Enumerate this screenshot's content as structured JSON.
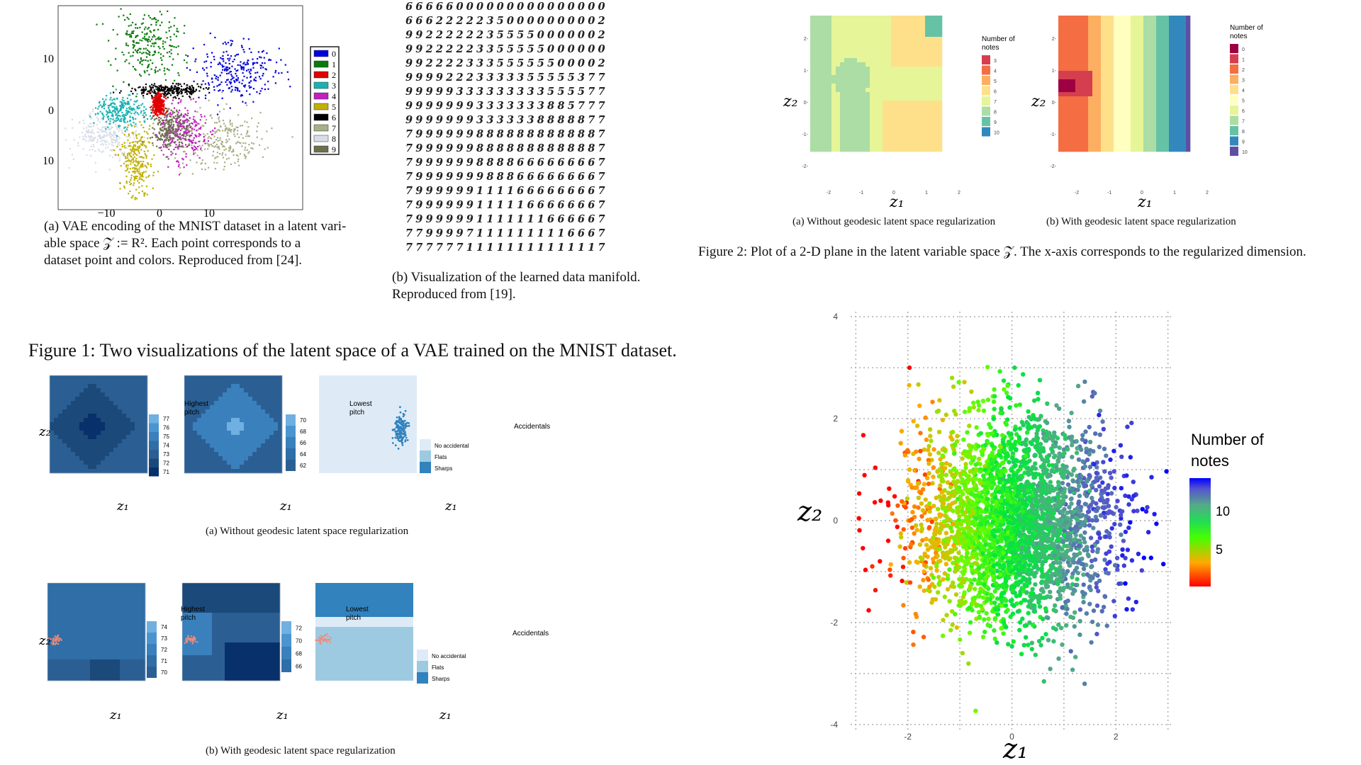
{
  "fig1": {
    "a": {
      "yticks": [
        "10",
        "0",
        "−10"
      ],
      "xticks": [
        "−10",
        "0",
        "10"
      ],
      "legend": [
        "0",
        "1",
        "2",
        "3",
        "4",
        "5",
        "6",
        "7",
        "8",
        "9"
      ],
      "legend_colors": [
        "#0000dd",
        "#0a7a0a",
        "#e00000",
        "#19b2b2",
        "#c020c0",
        "#c0b000",
        "#000000",
        "#a8b088",
        "#d8dde8",
        "#6e6e50"
      ],
      "caption_l1": "(a) VAE encoding of the MNIST dataset in a latent vari-",
      "caption_l2": "able space 𝒵 := R². Each point corresponds to a",
      "caption_l3": "dataset point and colors. Reproduced from [24]."
    },
    "b": {
      "rows": [
        "66666000000000000000",
        "66622222350000000002",
        "99222222355550000002",
        "99222223355555000000",
        "99222233355555500002",
        "99992223333355555377",
        "99999333333333555577",
        "99999993333333885777",
        "99999993333338888877",
        "79999998888888888887",
        "79999998888888888887",
        "79999998888666666667",
        "79999999888666666667",
        "79999991111666666667",
        "79999991111166666667",
        "79999991111111666667",
        "77999971111111116667",
        "77777711111111111117"
      ],
      "caption_l1": "(b) Visualization of the learned data manifold.",
      "caption_l2": "Reproduced from [19]."
    },
    "title": "Figure 1: Two visualizations of the latent space of a VAE trained on the MNIST dataset."
  },
  "fig2": {
    "a_caption": "(a) Without geodesic latent space regularization",
    "b_caption": "(b) With geodesic latent space regularization",
    "title": "Figure 2: Plot of a 2-D plane in the latent variable space 𝒵. The x-axis corresponds to the regularized dimension.",
    "a_legend_title": [
      "Number of",
      "notes"
    ],
    "a_legend": [
      "3",
      "4",
      "5",
      "6",
      "7",
      "8",
      "9",
      "10"
    ],
    "a_colors": [
      "#d53e4f",
      "#f46d43",
      "#fdae61",
      "#fee08b",
      "#e6f598",
      "#abdda4",
      "#66c2a5",
      "#3288bd"
    ],
    "b_legend_title": [
      "Number of",
      "notes"
    ],
    "b_legend": [
      "0",
      "1",
      "2",
      "3",
      "4",
      "5",
      "6",
      "7",
      "8",
      "9",
      "10"
    ],
    "b_colors": [
      "#9e0142",
      "#d53e4f",
      "#f46d43",
      "#fdae61",
      "#fee08b",
      "#ffffbf",
      "#e6f598",
      "#abdda4",
      "#66c2a5",
      "#3288bd",
      "#5e4fa2"
    ],
    "ticks_y": [
      "2-",
      "1-",
      "0-",
      "-1-",
      "-2-"
    ],
    "ticks_x": [
      "-2",
      "-1",
      "0",
      "1",
      "2"
    ]
  },
  "fig3": {
    "a_caption": "(a) Without geodesic latent space regularization",
    "b_caption": "(b) With geodesic latent space regularization",
    "a_high_title": [
      "Highest",
      "pitch"
    ],
    "a_high": [
      "77",
      "76",
      "75",
      "74",
      "73",
      "72",
      "71"
    ],
    "a_low_title": [
      "Lowest",
      "pitch"
    ],
    "a_low": [
      "70",
      "68",
      "66",
      "64",
      "62"
    ],
    "acc_title": "Accidentals",
    "acc_items": [
      "No accidental",
      "Flats",
      "Sharps"
    ],
    "acc_colors": [
      "#deebf7",
      "#9ecae1",
      "#3182bd"
    ],
    "b_high_title": [
      "Highest",
      "pitch"
    ],
    "b_high": [
      "74",
      "73",
      "72",
      "71",
      "70"
    ],
    "b_low_title": [
      "Lowest",
      "pitch"
    ],
    "b_low": [
      "72",
      "70",
      "68",
      "66"
    ]
  },
  "scatter": {
    "chart_data": {
      "type": "scatter",
      "xlabel": "z₁",
      "ylabel": "z₂",
      "xticks": [
        "-2",
        "0",
        "2"
      ],
      "yticks": [
        "4",
        "2",
        "0",
        "-2",
        "-4"
      ],
      "xlim": [
        -3.1,
        3.1
      ],
      "ylim": [
        -4.1,
        4.1
      ],
      "legend_title": [
        "Number of",
        "notes"
      ],
      "legend_ticks": [
        "10",
        "5"
      ],
      "colorbar": [
        "#ff0000",
        "#ffaa00",
        "#66ff00",
        "#00ff00",
        "#55aa88",
        "#5555cc",
        "#0000ff"
      ],
      "points_desc": "2D Gaussian cloud colored by number of notes, increasing along z1"
    }
  },
  "labels": {
    "z1": "z₁",
    "z2": "z₂"
  }
}
